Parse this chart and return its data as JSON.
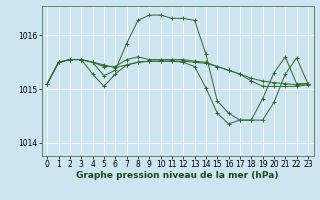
{
  "background_color": "#cce5f0",
  "grid_color": "#ffffff",
  "line_color": "#2d6a2d",
  "xlabel": "Graphe pression niveau de la mer (hPa)",
  "xlabel_fontsize": 6.5,
  "tick_fontsize": 5.5,
  "xlim": [
    -0.5,
    23.5
  ],
  "ylim": [
    1013.75,
    1016.55
  ],
  "yticks": [
    1014,
    1015,
    1016
  ],
  "xticks": [
    0,
    1,
    2,
    3,
    4,
    5,
    6,
    7,
    8,
    9,
    10,
    11,
    12,
    13,
    14,
    15,
    16,
    17,
    18,
    19,
    20,
    21,
    22,
    23
  ],
  "series": [
    [
      1015.1,
      1015.5,
      1015.55,
      1015.55,
      1015.5,
      1015.25,
      1015.35,
      1015.85,
      1016.28,
      1016.38,
      1016.38,
      1016.32,
      1016.32,
      1016.28,
      1015.65,
      1014.78,
      1014.55,
      1014.42,
      1014.42,
      1014.82,
      1015.3,
      1015.6,
      1015.1,
      1015.1
    ],
    [
      1015.1,
      1015.5,
      1015.55,
      1015.55,
      1015.5,
      1015.45,
      1015.4,
      1015.45,
      1015.5,
      1015.52,
      1015.52,
      1015.52,
      1015.52,
      1015.5,
      1015.48,
      1015.42,
      1015.35,
      1015.28,
      1015.2,
      1015.15,
      1015.12,
      1015.1,
      1015.08,
      1015.1
    ],
    [
      1015.1,
      1015.5,
      1015.55,
      1015.55,
      1015.28,
      1015.05,
      1015.28,
      1015.45,
      1015.5,
      1015.52,
      1015.52,
      1015.52,
      1015.5,
      1015.42,
      1015.02,
      1014.55,
      1014.35,
      1014.42,
      1014.42,
      1014.42,
      1014.75,
      1015.28,
      1015.58,
      1015.1
    ],
    [
      1015.1,
      1015.5,
      1015.55,
      1015.55,
      1015.5,
      1015.42,
      1015.42,
      1015.55,
      1015.6,
      1015.55,
      1015.55,
      1015.55,
      1015.55,
      1015.52,
      1015.5,
      1015.42,
      1015.35,
      1015.28,
      1015.15,
      1015.05,
      1015.05,
      1015.05,
      1015.05,
      1015.08
    ]
  ]
}
